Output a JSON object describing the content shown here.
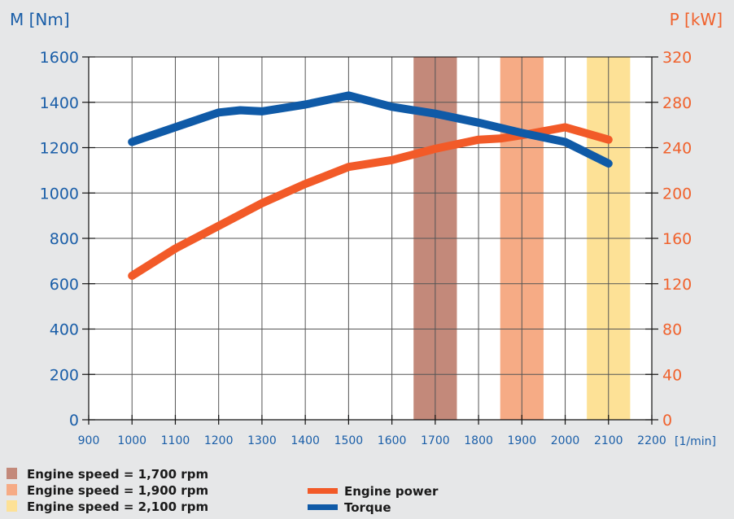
{
  "chart_data": {
    "type": "line",
    "left_axis_label": "M [Nm]",
    "right_axis_label": "P [kW]",
    "x_unit_label": "[1/min]",
    "x_ticks": [
      900,
      1000,
      1100,
      1200,
      1300,
      1400,
      1500,
      1600,
      1700,
      1800,
      1900,
      2000,
      2100,
      2200
    ],
    "left_ticks": [
      0,
      200,
      400,
      600,
      800,
      1000,
      1200,
      1400,
      1600
    ],
    "right_ticks": [
      0,
      40,
      80,
      120,
      160,
      200,
      240,
      280,
      320
    ],
    "xlim": [
      900,
      2200
    ],
    "ylim_left": [
      0,
      1600
    ],
    "ylim_right": [
      0,
      320
    ],
    "grid": true,
    "colors": {
      "left_axis": "#1a5ea8",
      "right_axis": "#f0622d",
      "torque_line": "#0f5aa7",
      "power_line": "#f25a28",
      "background": "#e6e7e8",
      "plot_area": "#ffffff"
    },
    "bands": [
      {
        "label": "Engine speed = 1,700 rpm",
        "from": 1650,
        "to": 1750,
        "color": "#c3897a"
      },
      {
        "label": "Engine speed = 1,900 rpm",
        "from": 1850,
        "to": 1950,
        "color": "#f6ab85"
      },
      {
        "label": "Engine speed = 2,100 rpm",
        "from": 2050,
        "to": 2150,
        "color": "#fde196"
      }
    ],
    "series": [
      {
        "name": "Engine power",
        "axis": "right",
        "x": [
          1000,
          1100,
          1200,
          1300,
          1400,
          1500,
          1600,
          1700,
          1800,
          1850,
          1900,
          2000,
          2100
        ],
        "values": [
          127,
          151,
          171,
          191,
          208,
          223,
          229,
          239,
          247,
          248,
          251,
          258,
          247
        ]
      },
      {
        "name": "Torque",
        "axis": "left",
        "x": [
          1000,
          1100,
          1200,
          1250,
          1300,
          1400,
          1500,
          1600,
          1700,
          1800,
          1900,
          2000,
          2100
        ],
        "values": [
          1225,
          1290,
          1355,
          1365,
          1360,
          1390,
          1430,
          1380,
          1350,
          1310,
          1265,
          1225,
          1130
        ]
      }
    ]
  }
}
